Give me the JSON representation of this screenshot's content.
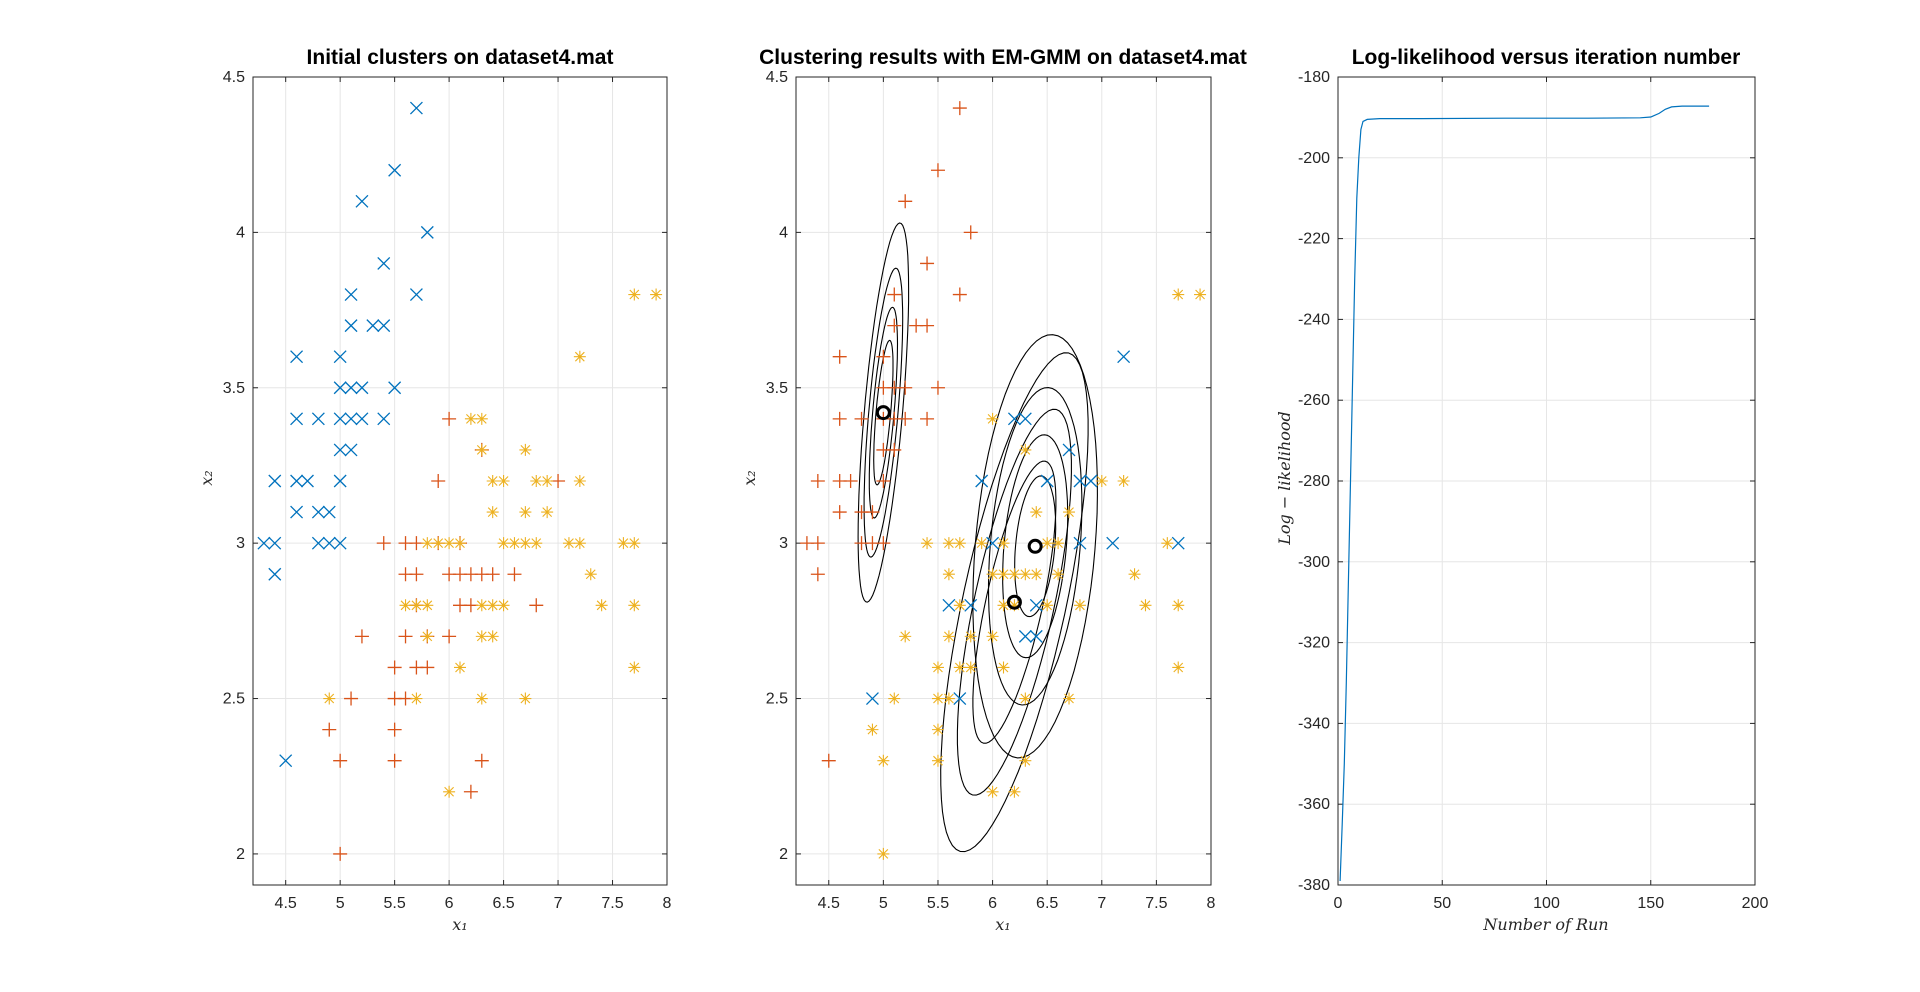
{
  "colors": {
    "cluster1": "#0072BD",
    "cluster2": "#D95319",
    "cluster3": "#EDB120",
    "contour": "#000000",
    "curve": "#0072BD"
  },
  "chart_data": [
    {
      "type": "scatter",
      "title": "Initial clusters on dataset4.mat",
      "xlabel": "x₁",
      "ylabel": "x₂",
      "xlim": [
        4.2,
        8
      ],
      "ylim": [
        1.9,
        4.5
      ],
      "xticks": [
        4.5,
        5,
        5.5,
        6,
        6.5,
        7,
        7.5,
        8
      ],
      "yticks": [
        2,
        2.5,
        3,
        3.5,
        4,
        4.5
      ],
      "grid": true,
      "series": [
        {
          "marker": "x",
          "color": "#0072BD",
          "points": [
            [
              4.3,
              3
            ],
            [
              4.4,
              3
            ],
            [
              4.4,
              2.9
            ],
            [
              4.4,
              3.2
            ],
            [
              4.5,
              2.3
            ],
            [
              4.6,
              3.1
            ],
            [
              4.6,
              3.2
            ],
            [
              4.6,
              3.4
            ],
            [
              4.6,
              3.6
            ],
            [
              4.7,
              3.2
            ],
            [
              4.8,
              3
            ],
            [
              4.8,
              3.1
            ],
            [
              4.8,
              3.4
            ],
            [
              4.9,
              3
            ],
            [
              4.9,
              3.1
            ],
            [
              5,
              3
            ],
            [
              5,
              3.2
            ],
            [
              5,
              3.3
            ],
            [
              5,
              3.4
            ],
            [
              5,
              3.5
            ],
            [
              5,
              3.6
            ],
            [
              5.1,
              3.3
            ],
            [
              5.1,
              3.4
            ],
            [
              5.1,
              3.5
            ],
            [
              5.1,
              3.7
            ],
            [
              5.1,
              3.8
            ],
            [
              5.2,
              3.4
            ],
            [
              5.2,
              3.5
            ],
            [
              5.2,
              4.1
            ],
            [
              5.3,
              3.7
            ],
            [
              5.4,
              3.4
            ],
            [
              5.4,
              3.7
            ],
            [
              5.4,
              3.9
            ],
            [
              5.5,
              3.5
            ],
            [
              5.5,
              4.2
            ],
            [
              5.7,
              3.8
            ],
            [
              5.7,
              4.4
            ],
            [
              5.8,
              4
            ]
          ]
        },
        {
          "marker": "+",
          "color": "#D95319",
          "points": [
            [
              4.9,
              2.4
            ],
            [
              5,
              2
            ],
            [
              5,
              2.3
            ],
            [
              5.1,
              2.5
            ],
            [
              5.2,
              2.7
            ],
            [
              5.4,
              3
            ],
            [
              5.5,
              2.3
            ],
            [
              5.5,
              2.4
            ],
            [
              5.5,
              2.5
            ],
            [
              5.5,
              2.6
            ],
            [
              5.6,
              2.5
            ],
            [
              5.6,
              2.7
            ],
            [
              5.6,
              2.9
            ],
            [
              5.6,
              3
            ],
            [
              5.7,
              2.6
            ],
            [
              5.7,
              2.8
            ],
            [
              5.7,
              2.9
            ],
            [
              5.7,
              3
            ],
            [
              5.8,
              2.6
            ],
            [
              5.8,
              2.7
            ],
            [
              5.9,
              3.2
            ],
            [
              5.9,
              3
            ],
            [
              6,
              2.7
            ],
            [
              6,
              2.9
            ],
            [
              6,
              3.4
            ],
            [
              6.1,
              2.8
            ],
            [
              6.1,
              2.9
            ],
            [
              6.1,
              3
            ],
            [
              6.2,
              2.2
            ],
            [
              6.2,
              2.8
            ],
            [
              6.2,
              2.9
            ],
            [
              6.3,
              2.3
            ],
            [
              6.3,
              2.9
            ],
            [
              6.3,
              3.3
            ],
            [
              6.4,
              2.9
            ],
            [
              6.6,
              2.9
            ],
            [
              6.8,
              2.8
            ],
            [
              7,
              3.2
            ]
          ]
        },
        {
          "marker": "*",
          "color": "#EDB120",
          "points": [
            [
              4.9,
              2.5
            ],
            [
              5.6,
              2.8
            ],
            [
              5.7,
              2.5
            ],
            [
              5.7,
              2.8
            ],
            [
              5.8,
              2.7
            ],
            [
              5.8,
              2.8
            ],
            [
              5.8,
              3
            ],
            [
              5.9,
              3
            ],
            [
              6,
              2.2
            ],
            [
              6,
              3
            ],
            [
              6.1,
              2.6
            ],
            [
              6.1,
              3
            ],
            [
              6.2,
              3.4
            ],
            [
              6.3,
              2.5
            ],
            [
              6.3,
              2.7
            ],
            [
              6.3,
              2.8
            ],
            [
              6.3,
              3.3
            ],
            [
              6.3,
              3.4
            ],
            [
              6.4,
              2.7
            ],
            [
              6.4,
              2.8
            ],
            [
              6.4,
              3.1
            ],
            [
              6.4,
              3.2
            ],
            [
              6.5,
              2.8
            ],
            [
              6.5,
              3
            ],
            [
              6.5,
              3.2
            ],
            [
              6.6,
              3
            ],
            [
              6.7,
              2.5
            ],
            [
              6.7,
              3
            ],
            [
              6.7,
              3.1
            ],
            [
              6.7,
              3.3
            ],
            [
              6.8,
              3
            ],
            [
              6.8,
              3.2
            ],
            [
              6.9,
              3.1
            ],
            [
              6.9,
              3.2
            ],
            [
              7.1,
              3
            ],
            [
              7.2,
              3
            ],
            [
              7.2,
              3.2
            ],
            [
              7.2,
              3.6
            ],
            [
              7.3,
              2.9
            ],
            [
              7.4,
              2.8
            ],
            [
              7.6,
              3
            ],
            [
              7.7,
              2.6
            ],
            [
              7.7,
              2.8
            ],
            [
              7.7,
              3
            ],
            [
              7.7,
              3.8
            ],
            [
              7.9,
              3.8
            ]
          ]
        }
      ]
    },
    {
      "type": "scatter",
      "title": "Clustering results with EM-GMM on dataset4.mat",
      "xlabel": "x₁",
      "ylabel": "x₂",
      "xlim": [
        4.2,
        8
      ],
      "ylim": [
        1.9,
        4.5
      ],
      "xticks": [
        4.5,
        5,
        5.5,
        6,
        6.5,
        7,
        7.5,
        8
      ],
      "yticks": [
        2,
        2.5,
        3,
        3.5,
        4,
        4.5
      ],
      "grid": true,
      "series": [
        {
          "marker": "x",
          "color": "#0072BD",
          "points": [
            [
              4.9,
              2.5
            ],
            [
              5.7,
              2.5
            ],
            [
              5.6,
              2.8
            ],
            [
              5.8,
              2.8
            ],
            [
              5.9,
              3.2
            ],
            [
              6,
              3
            ],
            [
              6.2,
              3.4
            ],
            [
              6.3,
              3.4
            ],
            [
              6.3,
              2.7
            ],
            [
              6.4,
              2.7
            ],
            [
              6.4,
              2.8
            ],
            [
              6.5,
              3.2
            ],
            [
              6.7,
              3.3
            ],
            [
              6.8,
              3
            ],
            [
              6.8,
              3.2
            ],
            [
              6.9,
              3.2
            ],
            [
              7.1,
              3
            ],
            [
              7.2,
              3.6
            ],
            [
              7.7,
              3
            ]
          ]
        },
        {
          "marker": "+",
          "color": "#D95319",
          "points": [
            [
              4.3,
              3
            ],
            [
              4.4,
              2.9
            ],
            [
              4.4,
              3
            ],
            [
              4.4,
              3.2
            ],
            [
              4.5,
              2.3
            ],
            [
              4.6,
              3.1
            ],
            [
              4.6,
              3.2
            ],
            [
              4.6,
              3.4
            ],
            [
              4.6,
              3.6
            ],
            [
              4.7,
              3.2
            ],
            [
              4.8,
              3
            ],
            [
              4.8,
              3.1
            ],
            [
              4.8,
              3.4
            ],
            [
              4.9,
              3
            ],
            [
              4.9,
              3.1
            ],
            [
              5,
              3
            ],
            [
              5,
              3.2
            ],
            [
              5,
              3.3
            ],
            [
              5,
              3.4
            ],
            [
              5,
              3.5
            ],
            [
              5,
              3.6
            ],
            [
              5.1,
              3.3
            ],
            [
              5.1,
              3.4
            ],
            [
              5.1,
              3.5
            ],
            [
              5.1,
              3.7
            ],
            [
              5.1,
              3.8
            ],
            [
              5.2,
              3.4
            ],
            [
              5.2,
              3.5
            ],
            [
              5.2,
              4.1
            ],
            [
              5.3,
              3.7
            ],
            [
              5.4,
              3.4
            ],
            [
              5.4,
              3.7
            ],
            [
              5.4,
              3.9
            ],
            [
              5.5,
              3.5
            ],
            [
              5.5,
              4.2
            ],
            [
              5.7,
              3.8
            ],
            [
              5.7,
              4.4
            ],
            [
              5.8,
              4
            ]
          ]
        },
        {
          "marker": "*",
          "color": "#EDB120",
          "points": [
            [
              4.9,
              2.4
            ],
            [
              5,
              2
            ],
            [
              5,
              2.3
            ],
            [
              5.1,
              2.5
            ],
            [
              5.2,
              2.7
            ],
            [
              5.4,
              3
            ],
            [
              5.5,
              2.3
            ],
            [
              5.5,
              2.4
            ],
            [
              5.5,
              2.5
            ],
            [
              5.5,
              2.6
            ],
            [
              5.6,
              2.5
            ],
            [
              5.6,
              2.7
            ],
            [
              5.6,
              2.9
            ],
            [
              5.6,
              3
            ],
            [
              5.7,
              2.6
            ],
            [
              5.7,
              2.8
            ],
            [
              5.7,
              3
            ],
            [
              5.8,
              2.6
            ],
            [
              5.8,
              2.7
            ],
            [
              5.9,
              3
            ],
            [
              6,
              2.2
            ],
            [
              6,
              2.7
            ],
            [
              6,
              2.9
            ],
            [
              6,
              3.4
            ],
            [
              6.1,
              2.6
            ],
            [
              6.1,
              2.8
            ],
            [
              6.1,
              2.9
            ],
            [
              6.1,
              3
            ],
            [
              6.2,
              2.2
            ],
            [
              6.2,
              2.8
            ],
            [
              6.2,
              2.9
            ],
            [
              6.3,
              2.3
            ],
            [
              6.3,
              2.5
            ],
            [
              6.3,
              2.9
            ],
            [
              6.3,
              3.3
            ],
            [
              6.4,
              2.9
            ],
            [
              6.4,
              3.1
            ],
            [
              6.5,
              2.8
            ],
            [
              6.5,
              3
            ],
            [
              6.6,
              2.9
            ],
            [
              6.6,
              3
            ],
            [
              6.7,
              2.5
            ],
            [
              6.7,
              3.1
            ],
            [
              6.8,
              2.8
            ],
            [
              7,
              3.2
            ],
            [
              7.2,
              3.2
            ],
            [
              7.3,
              2.9
            ],
            [
              7.4,
              2.8
            ],
            [
              7.6,
              3
            ],
            [
              7.7,
              2.6
            ],
            [
              7.7,
              2.8
            ],
            [
              7.7,
              3.8
            ],
            [
              7.9,
              3.8
            ]
          ]
        }
      ],
      "means": [
        [
          5.0,
          3.42
        ],
        [
          6.39,
          2.99
        ],
        [
          6.2,
          2.81
        ]
      ],
      "contours": [
        {
          "center": [
            5.0,
            3.42
          ],
          "angle_deg": 75,
          "semi_axes": [
            [
              0.63,
              0.17
            ],
            [
              0.48,
              0.13
            ],
            [
              0.35,
              0.095
            ],
            [
              0.24,
              0.065
            ]
          ]
        },
        {
          "center": [
            6.39,
            2.99
          ],
          "angle_deg": 62,
          "semi_axes": [
            [
              0.72,
              0.52
            ],
            [
              0.54,
              0.39
            ],
            [
              0.38,
              0.27
            ],
            [
              0.24,
              0.17
            ]
          ]
        },
        {
          "center": [
            6.2,
            2.81
          ],
          "angle_deg": 52,
          "semi_axes": [
            [
              0.97,
              0.4
            ],
            [
              0.75,
              0.31
            ],
            [
              0.55,
              0.22
            ]
          ]
        }
      ]
    },
    {
      "type": "line",
      "title": "Log-likelihood versus iteration number",
      "xlabel": "Number of Run",
      "ylabel": "Log − likelihood",
      "xlim": [
        0,
        200
      ],
      "ylim": [
        -380,
        -180
      ],
      "xticks": [
        0,
        50,
        100,
        150,
        200
      ],
      "yticks": [
        -380,
        -360,
        -340,
        -320,
        -300,
        -280,
        -260,
        -240,
        -220,
        -200,
        -180
      ],
      "grid": true,
      "series": [
        {
          "color": "#0072BD",
          "x": [
            1,
            2,
            3,
            4,
            5,
            6,
            7,
            8,
            9,
            10,
            11,
            12,
            14,
            20,
            40,
            80,
            120,
            145,
            150,
            154,
            157,
            160,
            165,
            170,
            178
          ],
          "y": [
            -379,
            -365,
            -350,
            -330,
            -305,
            -280,
            -255,
            -230,
            -210,
            -200,
            -193,
            -191,
            -190.5,
            -190.3,
            -190.3,
            -190.2,
            -190.2,
            -190.1,
            -189.9,
            -189,
            -188,
            -187.4,
            -187.2,
            -187.2,
            -187.2
          ]
        }
      ]
    }
  ]
}
